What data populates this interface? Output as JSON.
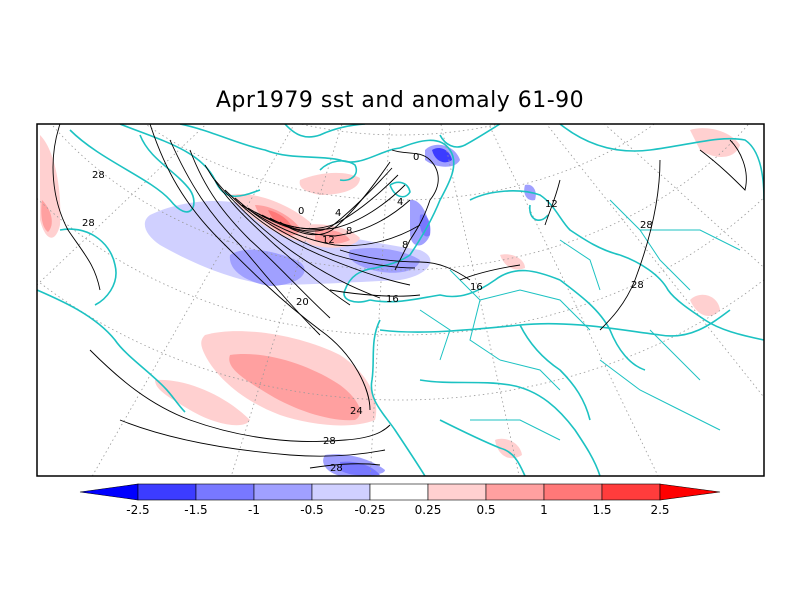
{
  "title": "Apr1979 sst and anomaly 61-90",
  "colors": {
    "coast": "#1cc2c2",
    "contour": "#000000",
    "anomaly_scale": [
      "#0000ff",
      "#3c3cff",
      "#7878ff",
      "#a0a0ff",
      "#d0d0ff",
      "#ffffff",
      "#ffd0d0",
      "#ffa0a0",
      "#ff7878",
      "#ff3c3c",
      "#ff0000"
    ]
  },
  "colorbar": {
    "labels": [
      "-2.5",
      "-1.5",
      "-1",
      "-0.5",
      "-0.25",
      "0.25",
      "0.5",
      "1",
      "1.5",
      "2.5"
    ]
  },
  "contour_labels": [
    "28",
    "28",
    "0",
    "4",
    "8",
    "12",
    "4",
    "0",
    "8",
    "12",
    "16",
    "20",
    "16",
    "24",
    "28",
    "28",
    "28",
    "28"
  ]
}
